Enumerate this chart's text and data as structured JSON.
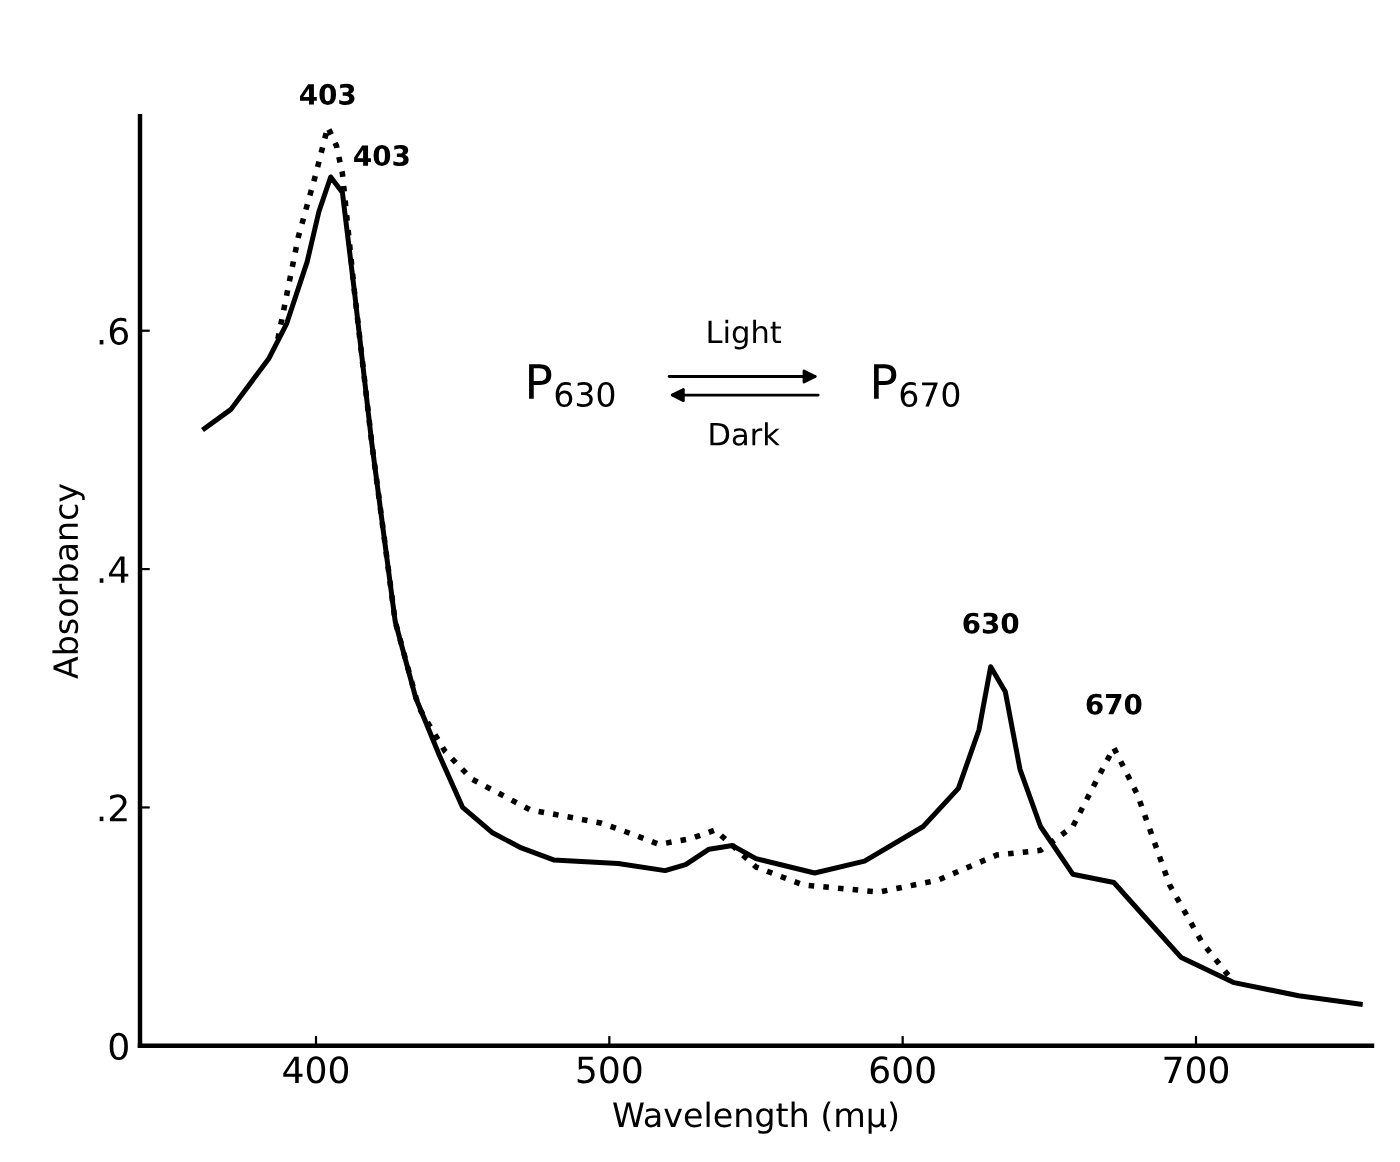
{
  "chart_data": {
    "type": "line",
    "xlabel": "Wavelength (mμ)",
    "ylabel": "Absorbancy",
    "xlim": [
      340,
      760
    ],
    "ylim": [
      0,
      0.78
    ],
    "xticks": [
      400,
      500,
      600,
      700
    ],
    "yticks": [
      {
        "value": 0,
        "label": "0"
      },
      {
        "value": 0.2,
        "label": ".2"
      },
      {
        "value": 0.4,
        "label": ".4"
      },
      {
        "value": 0.6,
        "label": ".6"
      }
    ],
    "grid": false,
    "legend": false,
    "marker": "none",
    "series": [
      {
        "color": "#000000",
        "line_style": "solid",
        "x": [
          362,
          371,
          384,
          390,
          397,
          401,
          405,
          409,
          413,
          419,
          427,
          434,
          442,
          450,
          460,
          470,
          481,
          503,
          519,
          526,
          534,
          542,
          550,
          570,
          587,
          607,
          619,
          626,
          630,
          635,
          640,
          647,
          658,
          672,
          680,
          695,
          713,
          735,
          756
        ],
        "values": [
          0.518,
          0.534,
          0.577,
          0.606,
          0.658,
          0.7,
          0.729,
          0.716,
          0.635,
          0.506,
          0.356,
          0.292,
          0.244,
          0.2,
          0.179,
          0.166,
          0.156,
          0.153,
          0.147,
          0.152,
          0.165,
          0.168,
          0.157,
          0.145,
          0.155,
          0.184,
          0.216,
          0.265,
          0.318,
          0.297,
          0.232,
          0.184,
          0.144,
          0.137,
          0.115,
          0.074,
          0.053,
          0.042,
          0.035
        ]
      },
      {
        "color": "#000000",
        "line_style": "dotted",
        "x": [
          387,
          394,
          400,
          404,
          407,
          409,
          413,
          419,
          427,
          435,
          444,
          453,
          473,
          497,
          503,
          517,
          528,
          536,
          542,
          550,
          566,
          592,
          612,
          632,
          647,
          658,
          667,
          672,
          680,
          691,
          702,
          713
        ],
        "values": [
          0.593,
          0.679,
          0.732,
          0.771,
          0.755,
          0.732,
          0.635,
          0.506,
          0.356,
          0.284,
          0.247,
          0.224,
          0.198,
          0.187,
          0.182,
          0.169,
          0.174,
          0.181,
          0.168,
          0.15,
          0.135,
          0.129,
          0.139,
          0.16,
          0.164,
          0.184,
          0.227,
          0.25,
          0.211,
          0.135,
          0.087,
          0.053
        ]
      }
    ],
    "annotations": [
      {
        "text": "403",
        "x": 404,
        "y": 0.771
      },
      {
        "text": "403",
        "x": 405,
        "y": 0.729
      },
      {
        "text": "630",
        "x": 630,
        "y": 0.318
      },
      {
        "text": "670",
        "x": 672,
        "y": 0.25
      },
      "P$_{630}$",
      "Light",
      "Dark",
      "P$_{670}$"
    ]
  }
}
